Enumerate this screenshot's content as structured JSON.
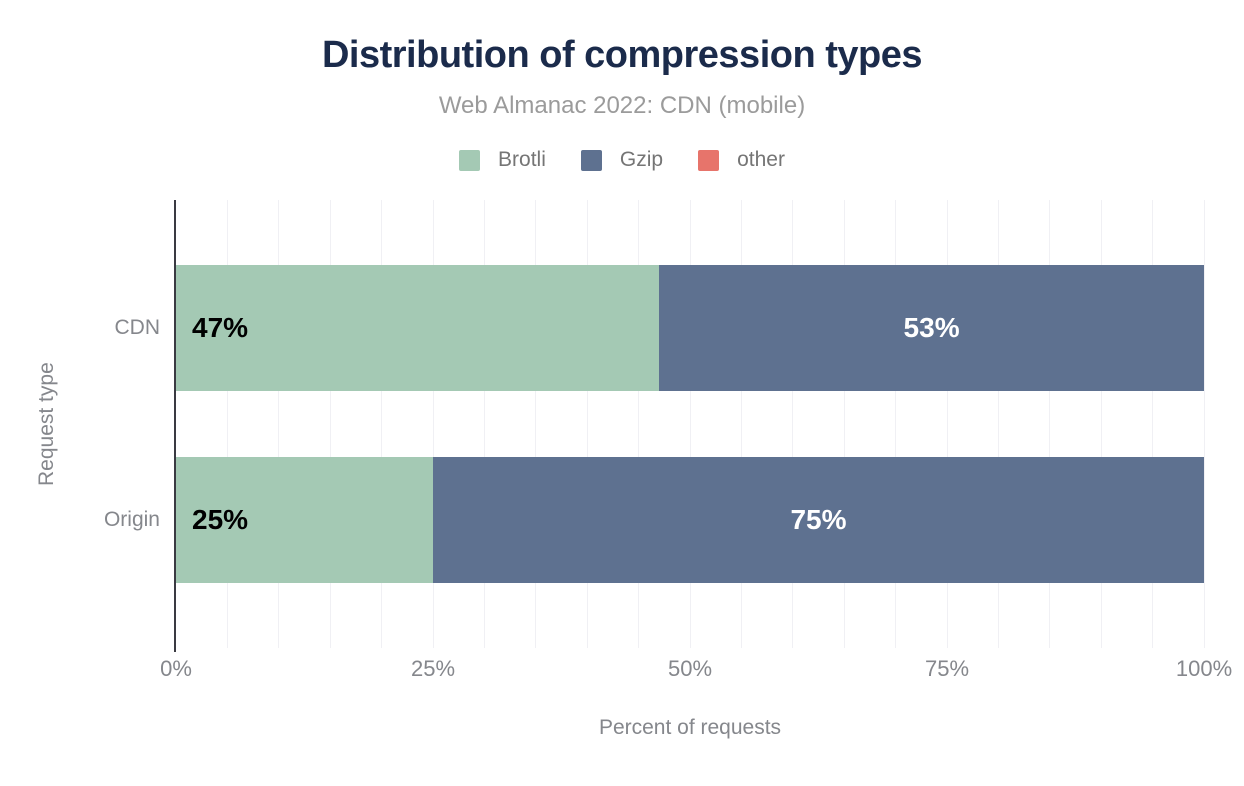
{
  "chart_data": {
    "type": "bar",
    "orientation": "horizontal",
    "stacked": true,
    "title": "Distribution of compression types",
    "subtitle": "Web Almanac 2022: CDN (mobile)",
    "categories": [
      "CDN",
      "Origin"
    ],
    "series": [
      {
        "name": "Brotli",
        "color": "#a4c9b4",
        "label_color": "#000000",
        "values": [
          47,
          25
        ]
      },
      {
        "name": "Gzip",
        "color": "#5e7190",
        "label_color": "#ffffff",
        "values": [
          53,
          75
        ]
      },
      {
        "name": "other",
        "color": "#e7746b",
        "label_color": "#ffffff",
        "values": [
          0,
          0
        ]
      }
    ],
    "value_labels": [
      [
        "47%",
        "53%"
      ],
      [
        "25%",
        "75%"
      ]
    ],
    "xlabel": "Percent of requests",
    "ylabel": "Request type",
    "xlim": [
      0,
      100
    ],
    "x_ticks": [
      {
        "value": 0,
        "label": "0%"
      },
      {
        "value": 25,
        "label": "25%"
      },
      {
        "value": 50,
        "label": "50%"
      },
      {
        "value": 75,
        "label": "75%"
      },
      {
        "value": 100,
        "label": "100%"
      }
    ],
    "grid": {
      "show": true,
      "interval_percent": 5
    },
    "legend": {
      "position": "top"
    }
  },
  "style": {
    "title_color": "#1b2b4b",
    "subtitle_color": "#9b9b9b",
    "axis_text_color": "#85878c",
    "legend_text_color": "#757575",
    "gridline_color": "#f0f0f4",
    "axis_line_color": "#3a3a42",
    "background_color": "#ffffff"
  }
}
